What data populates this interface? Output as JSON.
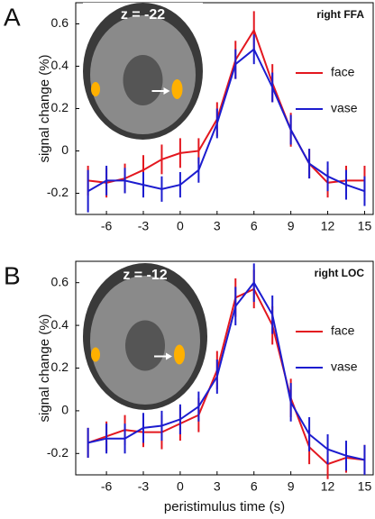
{
  "chart_data": [
    {
      "type": "line",
      "panel_label": "A",
      "title": "right FFA",
      "inset_label": "z = -22",
      "ylabel": "signal change (%)",
      "x": [
        -7.5,
        -6,
        -4.5,
        -3,
        -1.5,
        0,
        1.5,
        3,
        4.5,
        6,
        7.5,
        9,
        10.5,
        12,
        13.5,
        15
      ],
      "series": [
        {
          "name": "face",
          "color": "#e3171f",
          "values": [
            -0.14,
            -0.15,
            -0.13,
            -0.09,
            -0.04,
            -0.01,
            0.0,
            0.15,
            0.43,
            0.57,
            0.32,
            0.1,
            -0.06,
            -0.15,
            -0.14,
            -0.14
          ],
          "errors": [
            0.07,
            0.07,
            0.07,
            0.07,
            0.07,
            0.07,
            0.06,
            0.08,
            0.09,
            0.09,
            0.09,
            0.08,
            0.07,
            0.07,
            0.07,
            0.07
          ]
        },
        {
          "name": "vase",
          "color": "#1c1ccf",
          "values": [
            -0.19,
            -0.14,
            -0.14,
            -0.16,
            -0.18,
            -0.16,
            -0.09,
            0.13,
            0.41,
            0.48,
            0.3,
            0.1,
            -0.06,
            -0.12,
            -0.16,
            -0.19
          ],
          "errors": [
            0.1,
            0.07,
            0.06,
            0.06,
            0.06,
            0.06,
            0.06,
            0.07,
            0.07,
            0.07,
            0.07,
            0.07,
            0.07,
            0.07,
            0.07,
            0.07
          ]
        }
      ],
      "xlim": [
        -8.5,
        15.7
      ],
      "ylim": [
        -0.3,
        0.7
      ],
      "xticks": [
        -6,
        -3,
        0,
        3,
        6,
        9,
        12,
        15
      ],
      "yticks": [
        -0.2,
        0,
        0.2,
        0.4,
        0.6
      ],
      "legend": "right"
    },
    {
      "type": "line",
      "panel_label": "B",
      "title": "right LOC",
      "inset_label": "z = -12",
      "ylabel": "signal change (%)",
      "xlabel": "peristimulus time (s)",
      "x": [
        -7.5,
        -6,
        -4.5,
        -3,
        -1.5,
        0,
        1.5,
        3,
        4.5,
        6,
        7.5,
        9,
        10.5,
        12,
        13.5,
        15
      ],
      "series": [
        {
          "name": "face",
          "color": "#e3171f",
          "values": [
            -0.15,
            -0.12,
            -0.09,
            -0.1,
            -0.1,
            -0.06,
            -0.02,
            0.19,
            0.53,
            0.57,
            0.4,
            0.06,
            -0.17,
            -0.25,
            -0.22,
            -0.23
          ],
          "errors": [
            0.07,
            0.07,
            0.07,
            0.07,
            0.08,
            0.08,
            0.08,
            0.09,
            0.09,
            0.09,
            0.09,
            0.09,
            0.08,
            0.07,
            0.07,
            0.07
          ]
        },
        {
          "name": "vase",
          "color": "#1c1ccf",
          "values": [
            -0.15,
            -0.13,
            -0.13,
            -0.08,
            -0.07,
            -0.04,
            0.02,
            0.16,
            0.49,
            0.6,
            0.45,
            0.04,
            -0.11,
            -0.18,
            -0.21,
            -0.23
          ],
          "errors": [
            0.07,
            0.07,
            0.07,
            0.07,
            0.07,
            0.07,
            0.07,
            0.08,
            0.09,
            0.09,
            0.09,
            0.09,
            0.08,
            0.07,
            0.07,
            0.07
          ]
        }
      ],
      "xlim": [
        -8.5,
        15.7
      ],
      "ylim": [
        -0.3,
        0.7
      ],
      "xticks": [
        -6,
        -3,
        0,
        3,
        6,
        9,
        12,
        15
      ],
      "yticks": [
        -0.2,
        0,
        0.2,
        0.4,
        0.6
      ],
      "legend": "right"
    }
  ]
}
